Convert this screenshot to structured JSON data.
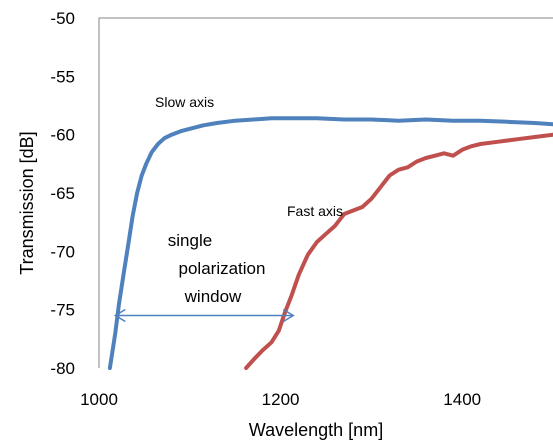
{
  "chart_data": {
    "type": "line",
    "title": "",
    "xlabel": "Wavelength [nm]",
    "ylabel": "Transmission [dB]",
    "xlim": [
      1000,
      1500
    ],
    "ylim": [
      -80,
      -50
    ],
    "xticks": [
      1000,
      1200,
      1400
    ],
    "yticks": [
      -50,
      -55,
      -60,
      -65,
      -70,
      -75,
      -80
    ],
    "grid": false,
    "legend": "none",
    "series": [
      {
        "name": "Slow axis",
        "color": "#4F81BD",
        "x": [
          1012,
          1018,
          1022,
          1027,
          1032,
          1037,
          1042,
          1047,
          1052,
          1058,
          1065,
          1072,
          1080,
          1090,
          1100,
          1115,
          1130,
          1150,
          1170,
          1190,
          1210,
          1240,
          1270,
          1300,
          1330,
          1360,
          1390,
          1420,
          1450,
          1480,
          1500
        ],
        "y": [
          -80,
          -77,
          -74.5,
          -72,
          -69.5,
          -67,
          -65,
          -63.5,
          -62.5,
          -61.5,
          -60.8,
          -60.3,
          -60.0,
          -59.7,
          -59.5,
          -59.2,
          -59.0,
          -58.8,
          -58.7,
          -58.6,
          -58.6,
          -58.6,
          -58.7,
          -58.7,
          -58.8,
          -58.7,
          -58.8,
          -58.8,
          -58.9,
          -59.0,
          -59.1
        ]
      },
      {
        "name": "Fast axis",
        "color": "#C0504D",
        "x": [
          1162,
          1170,
          1180,
          1190,
          1198,
          1205,
          1212,
          1220,
          1230,
          1240,
          1250,
          1260,
          1270,
          1280,
          1290,
          1300,
          1310,
          1320,
          1330,
          1340,
          1350,
          1360,
          1370,
          1380,
          1390,
          1400,
          1410,
          1420,
          1440,
          1460,
          1480,
          1500
        ],
        "y": [
          -80,
          -79.3,
          -78.5,
          -77.8,
          -76.8,
          -75.2,
          -73.8,
          -72.0,
          -70.3,
          -69.2,
          -68.5,
          -67.8,
          -66.8,
          -66.5,
          -66.2,
          -65.5,
          -64.5,
          -63.5,
          -63.0,
          -62.8,
          -62.3,
          -62.0,
          -61.8,
          -61.6,
          -61.8,
          -61.3,
          -61.0,
          -60.8,
          -60.6,
          -60.4,
          -60.2,
          -60.0
        ]
      }
    ],
    "annotations": {
      "slow_label": "Slow axis",
      "fast_label": "Fast axis",
      "window_line1": "single",
      "window_line2": "polarization",
      "window_line3": "window",
      "window_range": [
        1018,
        1214
      ],
      "window_level": -75.5
    }
  }
}
